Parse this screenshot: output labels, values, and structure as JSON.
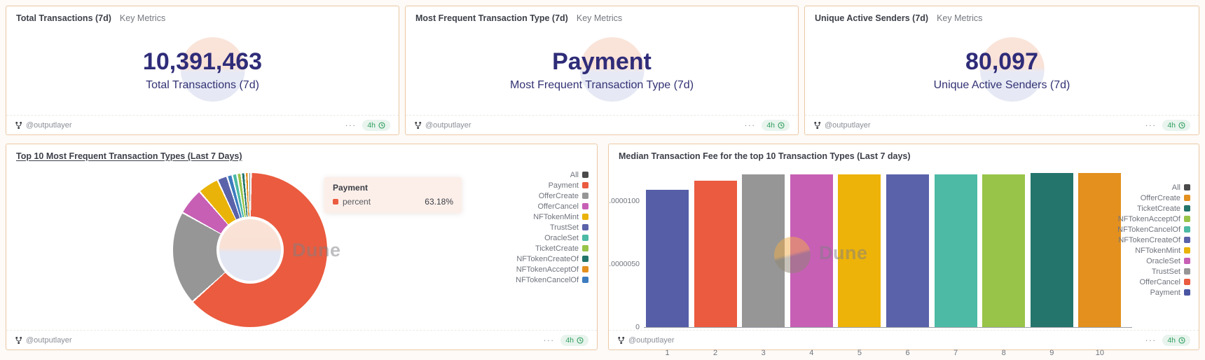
{
  "watermark": {
    "label": "Dune"
  },
  "footer": {
    "author": "@outputlayer",
    "more_label": "···",
    "age_label": "4h"
  },
  "colors": {
    "card_border": "#ecc9a4",
    "metric_text": "#2f2c79",
    "badge_green": "#2f9e5f",
    "badge_bg": "#e8f4ed"
  },
  "metric_cards": [
    {
      "title": "Total Transactions (7d)",
      "subtitle": "Key Metrics",
      "value": "10,391,463",
      "label": "Total Transactions (7d)"
    },
    {
      "title": "Most Frequent Transaction Type (7d)",
      "subtitle": "Key Metrics",
      "value": "Payment",
      "label": "Most Frequent Transaction Type (7d)"
    },
    {
      "title": "Unique Active Senders (7d)",
      "subtitle": "Key Metrics",
      "value": "80,097",
      "label": "Unique Active Senders (7d)"
    }
  ],
  "donut_card": {
    "title": "Top 10 Most Frequent Transaction Types (Last 7 Days)",
    "legend": [
      {
        "name": "All",
        "color": "#4a4a4a"
      },
      {
        "name": "Payment",
        "color": "#ea5b3f"
      },
      {
        "name": "OfferCreate",
        "color": "#969696"
      },
      {
        "name": "OfferCancel",
        "color": "#c75fb5"
      },
      {
        "name": "NFTokenMint",
        "color": "#eab309"
      },
      {
        "name": "TrustSet",
        "color": "#5a62a9"
      },
      {
        "name": "OracleSet",
        "color": "#4cbaa4"
      },
      {
        "name": "TicketCreate",
        "color": "#98c449"
      },
      {
        "name": "NFTokenCreateOf",
        "color": "#24756b"
      },
      {
        "name": "NFTokenAcceptOf",
        "color": "#e3901f"
      },
      {
        "name": "NFTokenCancelOf",
        "color": "#3d7cc0"
      }
    ]
  },
  "bar_card": {
    "title": "Median Transaction Fee for the top 10 Transaction Types (Last 7 days)",
    "legend": [
      {
        "name": "All",
        "color": "#4a4a4a"
      },
      {
        "name": "OfferCreate",
        "color": "#e3901f"
      },
      {
        "name": "TicketCreate",
        "color": "#24756b"
      },
      {
        "name": "NFTokenAcceptOf",
        "color": "#98c449"
      },
      {
        "name": "NFTokenCancelOf",
        "color": "#4cbaa4"
      },
      {
        "name": "NFTokenCreateOf",
        "color": "#5a62a9"
      },
      {
        "name": "NFTokenMint",
        "color": "#eab309"
      },
      {
        "name": "OracleSet",
        "color": "#c75fb5"
      },
      {
        "name": "TrustSet",
        "color": "#969696"
      },
      {
        "name": "OfferCancel",
        "color": "#ea5b3f"
      },
      {
        "name": "Payment",
        "color": "#4a55a2"
      }
    ]
  },
  "chart_data": [
    {
      "type": "pie",
      "title": "Top 10 Most Frequent Transaction Types (Last 7 Days)",
      "unit": "percent",
      "legend_position": "right",
      "slices": [
        {
          "name": "Payment",
          "value": 63.18,
          "color": "#ea5b3f"
        },
        {
          "name": "OfferCreate",
          "value": 19.7,
          "color": "#969696"
        },
        {
          "name": "OfferCancel",
          "value": 5.6,
          "color": "#c75fb5"
        },
        {
          "name": "NFTokenMint",
          "value": 4.4,
          "color": "#eab309"
        },
        {
          "name": "TrustSet",
          "value": 2.1,
          "color": "#5a62a9"
        },
        {
          "name": "NFTokenCancelOf",
          "value": 1.1,
          "color": "#3d7cc0"
        },
        {
          "name": "OracleSet",
          "value": 1.0,
          "color": "#4cbaa4"
        },
        {
          "name": "TicketCreate",
          "value": 0.9,
          "color": "#98c449"
        },
        {
          "name": "NFTokenCreateOf",
          "value": 0.8,
          "color": "#24756b"
        },
        {
          "name": "NFTokenAcceptOf",
          "value": 0.7,
          "color": "#e3901f"
        },
        {
          "name": "All",
          "value": 0.52,
          "color": "#8a8a8a"
        }
      ],
      "tooltip": {
        "title": "Payment",
        "series": "percent",
        "value": "63.18%"
      }
    },
    {
      "type": "bar",
      "title": "Median Transaction Fee for the top 10 Transaction Types (Last 7 days)",
      "categories": [
        "1",
        "2",
        "3",
        "4",
        "5",
        "6",
        "7",
        "8",
        "9",
        "10"
      ],
      "values": [
        1.09e-05,
        1.16e-05,
        1.21e-05,
        1.21e-05,
        1.21e-05,
        1.21e-05,
        1.21e-05,
        1.21e-05,
        1.22e-05,
        1.22e-05
      ],
      "bar_names": [
        "Payment",
        "OfferCancel",
        "TrustSet",
        "OracleSet",
        "NFTokenMint",
        "NFTokenCreateOf",
        "NFTokenCancelOf",
        "NFTokenAcceptOf",
        "TicketCreate",
        "OfferCreate"
      ],
      "bar_colors": [
        "#555ea6",
        "#ea5b3f",
        "#969696",
        "#c75fb5",
        "#edb309",
        "#5a62a9",
        "#4cbaa4",
        "#98c449",
        "#24756b",
        "#e3901f"
      ],
      "yticks": [
        {
          "label": ".0000100",
          "value": 1e-05
        },
        {
          "label": ".0000050",
          "value": 5e-06
        },
        {
          "label": "0",
          "value": 0
        }
      ],
      "ylim": [
        0,
        1.22e-05
      ],
      "grid": false,
      "legend_position": "right"
    }
  ]
}
